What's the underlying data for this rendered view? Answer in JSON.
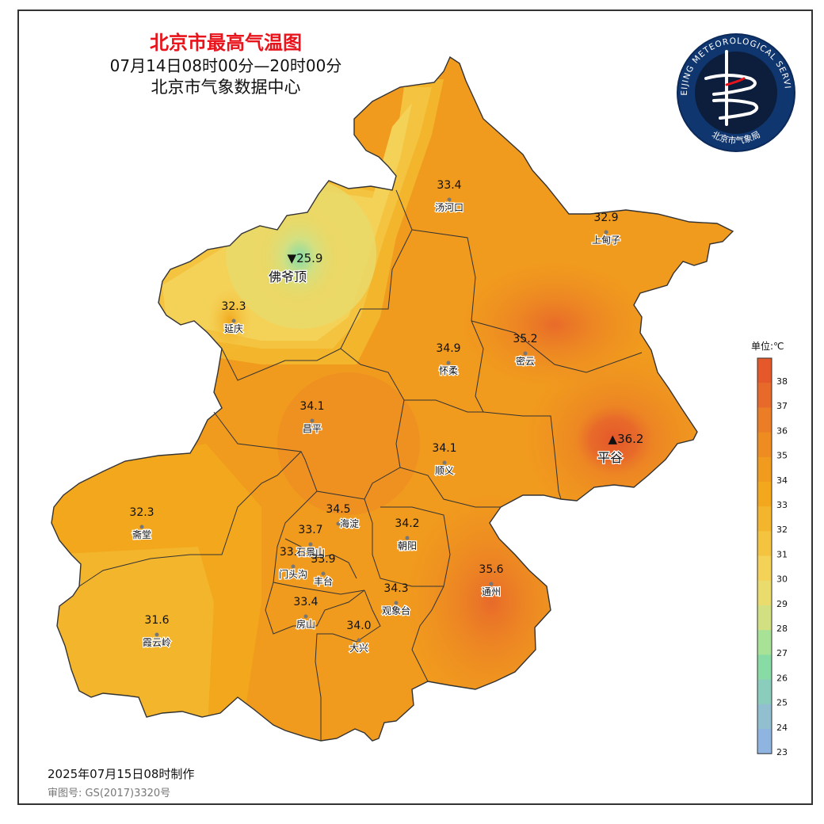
{
  "header": {
    "title": "北京市最高气温图",
    "period": "07月14日08时00分—20时00分",
    "source": "北京市气象数据中心"
  },
  "logo": {
    "ring_text_top": "BEIJING METEOROLOGICAL SERVICE",
    "ring_text_bottom": "北京市气象局"
  },
  "legend": {
    "unit_label": "单位:℃",
    "ticks": [
      "38",
      "37",
      "36",
      "35",
      "34",
      "33",
      "32",
      "31",
      "30",
      "29",
      "28",
      "27",
      "26",
      "25",
      "24",
      "23"
    ],
    "colors": [
      "#e4582a",
      "#e86a2a",
      "#eb7d26",
      "#ee8c22",
      "#f09a1e",
      "#f2a71c",
      "#f3b52c",
      "#f4c441",
      "#f4d157",
      "#e9db6c",
      "#d3e081",
      "#a8e296",
      "#88dba5",
      "#8bcdbc",
      "#91bfd0",
      "#8fb4df"
    ]
  },
  "stations": [
    {
      "name": "汤河口",
      "value": "33.4"
    },
    {
      "name": "上甸子",
      "value": "32.9"
    },
    {
      "name": "佛爷顶",
      "value": "▼25.9"
    },
    {
      "name": "延庆",
      "value": "32.3"
    },
    {
      "name": "怀柔",
      "value": "34.9"
    },
    {
      "name": "密云",
      "value": "35.2"
    },
    {
      "name": "昌平",
      "value": "34.1"
    },
    {
      "name": "平谷",
      "value": "▲36.2"
    },
    {
      "name": "顺义",
      "value": "34.1"
    },
    {
      "name": "斋堂",
      "value": "32.3"
    },
    {
      "name": "海淀",
      "value": "34.5"
    },
    {
      "name": "石景山",
      "value": "33.7"
    },
    {
      "name": "朝阳",
      "value": "34.2"
    },
    {
      "name": "门头沟",
      "value": "33."
    },
    {
      "name": "丰台",
      "value": "33.9"
    },
    {
      "name": "通州",
      "value": "35.6"
    },
    {
      "name": "观象台",
      "value": "34.3"
    },
    {
      "name": "房山",
      "value": "33.4"
    },
    {
      "name": "大兴",
      "value": "34.0"
    },
    {
      "name": "霞云岭",
      "value": "31.6"
    }
  ],
  "footer": {
    "made": "2025年07月15日08时制作",
    "review": "审图号: GS(2017)3320号"
  }
}
